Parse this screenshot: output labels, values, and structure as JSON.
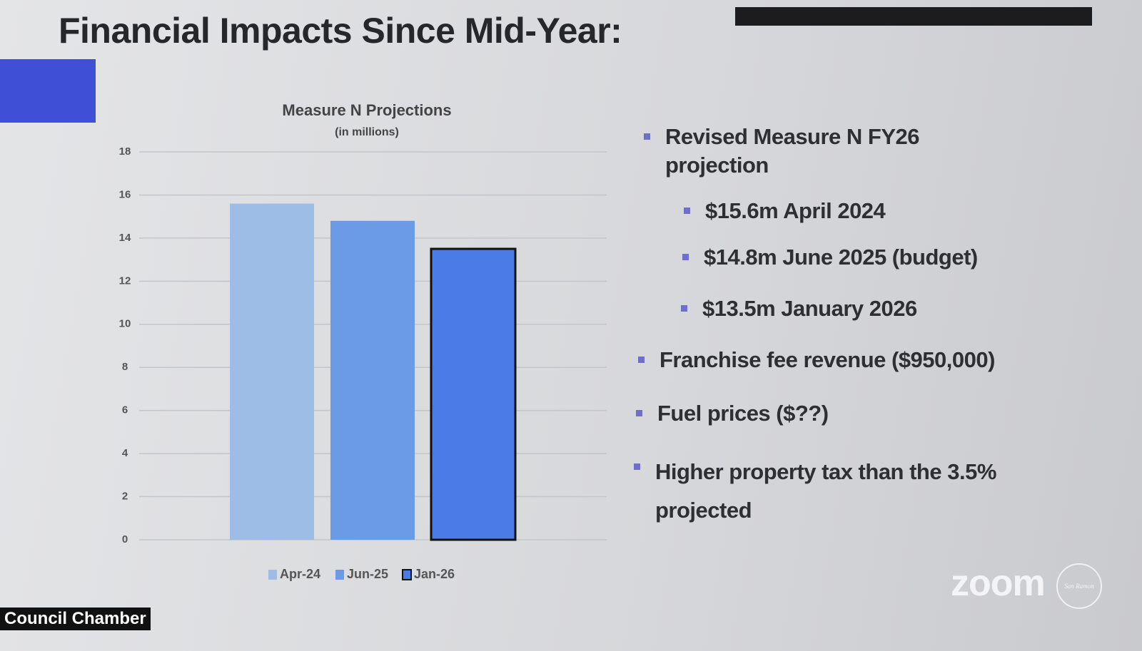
{
  "slide": {
    "title": "Financial Impacts Since Mid-Year:",
    "bullets": [
      {
        "text": "Revised Measure N FY26 projection",
        "sub": [
          "$15.6m April 2024",
          "$14.8m June 2025 (budget)",
          "$13.5m January 2026"
        ]
      },
      {
        "text": "Franchise fee revenue ($950,000)"
      },
      {
        "text": "Fuel prices ($??)"
      },
      {
        "text": "Higher property tax than the 3.5% projected"
      }
    ]
  },
  "chart_data": {
    "type": "bar",
    "title": "Measure N Projections",
    "subtitle": "(in millions)",
    "categories": [
      null
    ],
    "series": [
      {
        "name": "Apr-24",
        "color": "#9dbde6",
        "values": [
          15.6
        ]
      },
      {
        "name": "Jun-25",
        "color": "#6b9be6",
        "values": [
          14.8
        ]
      },
      {
        "name": "Jan-26",
        "color": "#4a7be6",
        "values": [
          13.5
        ]
      }
    ],
    "ylim": [
      0,
      18
    ],
    "yticks": [
      0,
      2,
      4,
      6,
      8,
      10,
      12,
      14,
      16,
      18
    ],
    "grid": true,
    "legend": "bottom"
  },
  "overlay": {
    "room": "Council Chamber",
    "logo": "zoom",
    "seal": "San Ramon"
  }
}
